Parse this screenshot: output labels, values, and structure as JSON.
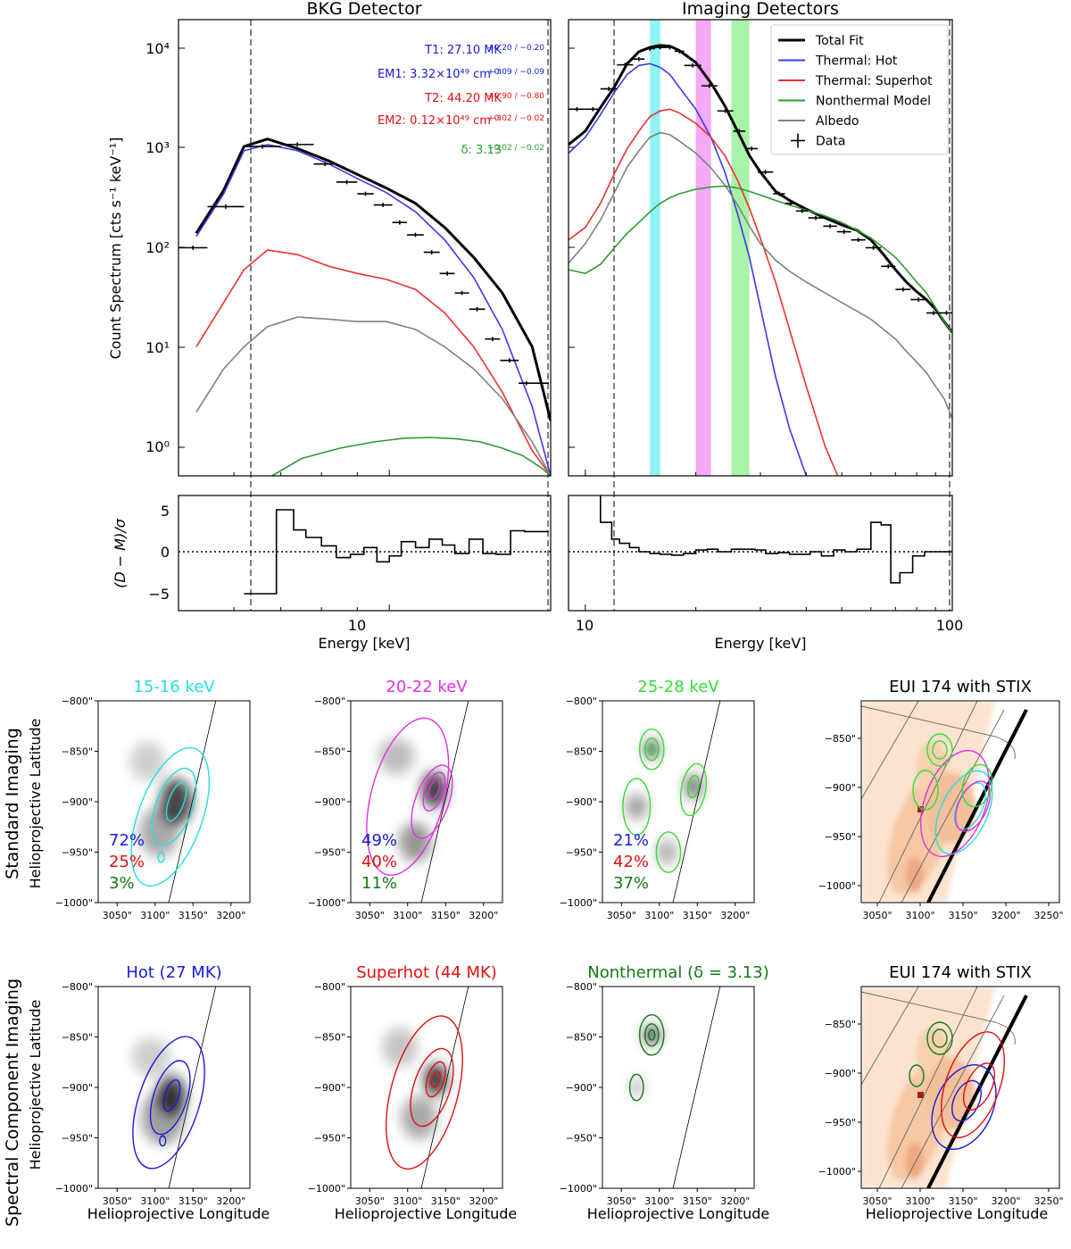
{
  "spectra": {
    "ylabel": "Count Spectrum [cts s⁻¹ keV⁻¹]",
    "res_ylabel": "(D − M)/σ",
    "xlabel": "Energy [keV]",
    "y_ticks": [
      "10⁰",
      "10¹",
      "10²",
      "10³",
      "10⁴"
    ],
    "res_ticks": [
      "5",
      "0",
      "−5"
    ],
    "panels": [
      {
        "title": "BKG Detector",
        "xrange": [
          5,
          17
        ],
        "x_ticks": [
          "10"
        ]
      },
      {
        "title": "Imaging Detectors",
        "xrange": [
          9,
          100
        ],
        "x_ticks": [
          "10",
          "100"
        ]
      }
    ],
    "fit_params": {
      "T1": "T1: 27.10 MK",
      "T1_err": "+0.20 / −0.20",
      "EM1": "EM1: 3.32×10⁴⁹ cm⁻³",
      "EM1_err": "+0.09 / −0.09",
      "T2": "T2: 44.20 MK",
      "T2_err": "+0.90 / −0.80",
      "EM2": "EM2: 0.12×10⁴⁹ cm⁻³",
      "EM2_err": "+0.02 / −0.02",
      "delta": "δ: 3.13",
      "delta_err": "+0.02 / −0.02"
    },
    "legend": [
      {
        "label": "Total Fit",
        "color": "#000000"
      },
      {
        "label": "Thermal: Hot",
        "color": "#3a3af0"
      },
      {
        "label": "Thermal: Superhot",
        "color": "#f03030"
      },
      {
        "label": "Nonthermal Model",
        "color": "#2f9a2f"
      },
      {
        "label": "Albedo",
        "color": "#808080"
      },
      {
        "label": "Data",
        "color": "#000000"
      }
    ]
  },
  "chart_data": [
    {
      "type": "line",
      "title": "BKG Detector",
      "xlabel": "Energy [keV]",
      "ylabel": "Count Spectrum",
      "xscale": "log",
      "yscale": "log",
      "xlim": [
        5,
        17
      ],
      "ylim": [
        0.5,
        20000
      ],
      "fit_range": [
        6.2,
        16.8
      ],
      "series": [
        {
          "name": "Total Fit",
          "color": "#000000",
          "x": [
            5.3,
            5.8,
            6.2,
            6.7,
            7.4,
            8.2,
            9.0,
            9.9,
            10.9,
            12.0,
            13.2,
            14.5,
            16.0,
            17.0
          ],
          "y": [
            140,
            380,
            1050,
            1250,
            1000,
            750,
            550,
            400,
            280,
            160,
            80,
            35,
            10,
            1.8
          ]
        },
        {
          "name": "Thermal: Hot",
          "color": "#3a3af0",
          "x": [
            5.3,
            5.8,
            6.2,
            6.7,
            7.4,
            8.2,
            9.0,
            9.9,
            10.9,
            12.0,
            13.2,
            14.5,
            16.0,
            17.0
          ],
          "y": [
            130,
            350,
            950,
            1100,
            950,
            700,
            500,
            360,
            230,
            120,
            50,
            15,
            2.5,
            0.5
          ]
        },
        {
          "name": "Thermal: Superhot",
          "color": "#f03030",
          "x": [
            5.3,
            5.8,
            6.2,
            6.7,
            7.4,
            8.2,
            9.0,
            9.9,
            10.9,
            12.0,
            13.2,
            14.5,
            16.0,
            17.0
          ],
          "y": [
            10,
            28,
            60,
            95,
            85,
            65,
            55,
            48,
            38,
            22,
            10,
            3.5,
            0.9,
            0.5
          ]
        },
        {
          "name": "Albedo",
          "color": "#808080",
          "x": [
            5.3,
            5.8,
            6.2,
            6.7,
            7.4,
            8.2,
            9.0,
            9.9,
            10.9,
            12.0,
            13.2,
            14.5,
            16.0,
            17.0
          ],
          "y": [
            2.2,
            6,
            10,
            16,
            20,
            19,
            18,
            18,
            15,
            10,
            6,
            3,
            1.1,
            0.5
          ]
        },
        {
          "name": "Nonthermal Model",
          "color": "#2f9a2f",
          "x": [
            6.8,
            7.5,
            8.5,
            9.5,
            10.5,
            11.5,
            12.5,
            13.5,
            14.5,
            15.5,
            16.5,
            17.0
          ],
          "y": [
            0.5,
            0.75,
            0.95,
            1.1,
            1.2,
            1.22,
            1.18,
            1.1,
            0.95,
            0.8,
            0.6,
            0.5
          ]
        },
        {
          "name": "Data",
          "color": "#000000",
          "step": true,
          "x0": [
            5.0,
            5.5,
            6.2,
            7.0,
            7.8,
            8.4,
            9.0,
            9.5,
            10.1,
            10.6,
            11.2,
            11.8,
            12.4,
            13.0,
            13.7,
            14.4,
            15.3,
            16.1
          ],
          "x1": [
            5.5,
            6.2,
            7.0,
            7.8,
            8.4,
            9.0,
            9.5,
            10.1,
            10.6,
            11.2,
            11.8,
            12.4,
            13.0,
            13.7,
            14.4,
            15.3,
            16.1,
            16.9
          ],
          "y": [
            100,
            260,
            1050,
            1100,
            700,
            460,
            350,
            270,
            180,
            135,
            90,
            55,
            35,
            24,
            12,
            7.3,
            4.3,
            4.3
          ]
        }
      ],
      "residuals": {
        "x0": [
          6.2,
          6.9,
          7.3,
          7.6,
          8.0,
          8.4,
          8.8,
          9.2,
          9.6,
          10.0,
          10.4,
          10.9,
          11.4,
          11.9,
          12.4,
          13.0,
          13.6,
          14.2,
          14.9,
          15.6,
          16.3
        ],
        "x1": [
          6.9,
          7.3,
          7.6,
          8.0,
          8.4,
          8.8,
          9.2,
          9.6,
          10.0,
          10.4,
          10.9,
          11.4,
          11.9,
          12.4,
          13.0,
          13.6,
          14.2,
          14.9,
          15.6,
          16.3,
          16.9
        ],
        "y": [
          -5,
          5,
          2.6,
          1.7,
          0.7,
          -0.7,
          -0.3,
          0.5,
          -1.2,
          -0.5,
          1.2,
          0.5,
          1.5,
          0.8,
          -0.2,
          1.5,
          -0.2,
          -0.3,
          2.5,
          2.4,
          2.4
        ]
      }
    },
    {
      "type": "line",
      "title": "Imaging Detectors",
      "xlabel": "Energy [keV]",
      "ylabel": "Count Spectrum",
      "xscale": "log",
      "yscale": "log",
      "xlim": [
        9,
        100
      ],
      "ylim": [
        0.5,
        20000
      ],
      "fit_range": [
        12,
        100
      ],
      "bands": [
        {
          "label": "15-16 keV",
          "range": [
            15,
            16
          ],
          "color": "#7af2f2"
        },
        {
          "label": "20-22 keV",
          "range": [
            20,
            22
          ],
          "color": "#f59af5"
        },
        {
          "label": "25-28 keV",
          "range": [
            25,
            28
          ],
          "color": "#9af09a"
        }
      ],
      "series": [
        {
          "name": "Total Fit",
          "color": "#000000",
          "x": [
            9,
            10,
            11,
            12,
            13,
            14,
            15,
            16,
            17,
            18,
            20,
            22,
            24,
            26,
            28,
            30,
            33,
            36,
            40,
            45,
            50,
            55,
            60,
            65,
            70,
            75,
            80,
            85,
            90,
            95,
            100
          ],
          "y": [
            1100,
            1500,
            2600,
            4200,
            7200,
            9500,
            10500,
            11000,
            10800,
            9800,
            7400,
            4600,
            2700,
            1500,
            850,
            580,
            370,
            300,
            245,
            200,
            170,
            150,
            120,
            85,
            60,
            45,
            36,
            30,
            24,
            18,
            14
          ]
        },
        {
          "name": "Thermal: Hot",
          "color": "#3a3af0",
          "x": [
            9,
            10,
            11,
            12,
            13,
            14,
            15,
            16,
            17,
            18,
            20,
            22,
            24,
            26,
            28,
            30,
            33,
            36,
            40
          ],
          "y": [
            900,
            1300,
            2200,
            3700,
            5600,
            6900,
            7200,
            6600,
            5600,
            4200,
            2500,
            1300,
            580,
            220,
            80,
            25,
            5,
            1.5,
            0.5
          ]
        },
        {
          "name": "Thermal: Superhot",
          "color": "#f03030",
          "x": [
            9,
            10,
            11,
            12,
            13,
            14,
            15,
            16,
            17,
            18,
            20,
            22,
            24,
            26,
            28,
            30,
            33,
            36,
            40,
            45,
            50
          ],
          "y": [
            120,
            160,
            280,
            560,
            1000,
            1500,
            2100,
            2400,
            2500,
            2300,
            1800,
            1300,
            850,
            480,
            250,
            125,
            45,
            15,
            4,
            1,
            0.4
          ]
        },
        {
          "name": "Albedo",
          "color": "#808080",
          "x": [
            9,
            10,
            11,
            12,
            13,
            14,
            15,
            16,
            17,
            18,
            20,
            22,
            24,
            26,
            28,
            30,
            33,
            36,
            40,
            45,
            50,
            55,
            60,
            65,
            70,
            75,
            80,
            85,
            90,
            95,
            100
          ],
          "y": [
            70,
            110,
            190,
            360,
            650,
            950,
            1300,
            1450,
            1380,
            1200,
            900,
            640,
            430,
            270,
            165,
            110,
            75,
            58,
            45,
            35,
            28,
            23,
            19,
            15,
            12,
            9,
            7,
            5.5,
            4,
            3,
            1.9
          ]
        },
        {
          "name": "Nonthermal Model",
          "color": "#2f9a2f",
          "x": [
            9,
            10,
            11,
            12,
            13,
            14,
            15,
            16,
            17,
            18,
            20,
            22,
            24,
            26,
            28,
            30,
            33,
            36,
            40,
            45,
            50,
            55,
            60,
            65,
            70,
            75,
            80,
            85,
            90,
            95,
            100
          ],
          "y": [
            60,
            55,
            68,
            100,
            140,
            180,
            230,
            280,
            320,
            350,
            390,
            410,
            420,
            400,
            370,
            340,
            300,
            270,
            240,
            210,
            180,
            150,
            125,
            100,
            80,
            60,
            45,
            35,
            25,
            18,
            14
          ]
        },
        {
          "name": "Data",
          "color": "#000000",
          "step": true,
          "x0": [
            9.0,
            10.0,
            11.0,
            12.2,
            13.5,
            14.5,
            15.5,
            16.5,
            17.5,
            18.6,
            20.7,
            22.9,
            25.3,
            27.3,
            29.5,
            32.5,
            35.0,
            37.5,
            40.5,
            44.5,
            48.5,
            53.0,
            58.0,
            64.0,
            70.0,
            77.0,
            85.0,
            93.0
          ],
          "x1": [
            10.0,
            11.0,
            12.2,
            13.5,
            14.5,
            15.5,
            16.5,
            17.5,
            18.6,
            20.7,
            22.9,
            25.3,
            27.3,
            29.5,
            32.5,
            35.0,
            37.5,
            40.5,
            44.5,
            48.5,
            53.0,
            58.0,
            64.0,
            70.0,
            77.0,
            85.0,
            93.0,
            100.0
          ],
          "y": [
            2500,
            2500,
            4000,
            7000,
            8000,
            10200,
            10500,
            10500,
            9600,
            6900,
            4300,
            2400,
            1500,
            1000,
            580,
            350,
            280,
            235,
            200,
            165,
            145,
            120,
            100,
            65,
            38,
            30,
            22,
            22
          ]
        }
      ],
      "residuals": {
        "x0": [
          9.0,
          11.0,
          11.8,
          12.4,
          13.2,
          14.0,
          15.0,
          16.0,
          17.2,
          18.5,
          20.0,
          21.5,
          23.0,
          25.0,
          27.0,
          29.0,
          31.0,
          33.5,
          36.0,
          38.5,
          41.0,
          44.0,
          47.5,
          51.0,
          55.0,
          60.0,
          64.0,
          68.0,
          72.0,
          78.0,
          84.0,
          92.0
        ],
        "x1": [
          11.0,
          11.8,
          12.4,
          13.2,
          14.0,
          15.0,
          16.0,
          17.2,
          18.5,
          20.0,
          21.5,
          23.0,
          25.0,
          27.0,
          29.0,
          31.0,
          33.5,
          36.0,
          38.5,
          41.0,
          44.0,
          47.5,
          51.0,
          55.0,
          60.0,
          64.0,
          68.0,
          72.0,
          78.0,
          84.0,
          92.0,
          100.0
        ],
        "y": [
          7,
          3.5,
          1.5,
          1.0,
          0.5,
          0.0,
          -0.2,
          -0.3,
          -0.4,
          -0.2,
          0.2,
          0.3,
          0.0,
          0.3,
          0.3,
          0.2,
          -0.2,
          -0.1,
          -0.3,
          -0.3,
          0.0,
          -0.5,
          0.2,
          0.0,
          0.3,
          3.5,
          3.2,
          -3.7,
          -2.5,
          -0.5,
          0.0,
          0.0
        ]
      }
    }
  ],
  "maps": {
    "row_labels": [
      "Standard Imaging",
      "Spectral Component Imaging"
    ],
    "lat_label": "Helioprojective Latitude",
    "lon_label": "Helioprojective Longitude",
    "y_ticks": [
      "−800\"",
      "−850\"",
      "−900\"",
      "−950\"",
      "−1000\""
    ],
    "x_ticks": [
      "3050\"",
      "3100\"",
      "3150\"",
      "3200\""
    ],
    "eui_y_ticks": [
      "−850\"",
      "−900\"",
      "−950\"",
      "−1000\""
    ],
    "eui_x_ticks": [
      "3050\"",
      "3100\"",
      "3150\"",
      "3200\"",
      "3250\""
    ],
    "row1": [
      {
        "title": "15-16 keV",
        "color": "#22e0e0",
        "pcts": [
          "72%",
          "25%",
          "3%"
        ]
      },
      {
        "title": "20-22 keV",
        "color": "#e030e0",
        "pcts": [
          "49%",
          "40%",
          "11%"
        ]
      },
      {
        "title": "25-28 keV",
        "color": "#33dd33",
        "pcts": [
          "21%",
          "42%",
          "37%"
        ]
      },
      {
        "title": "EUI 174 with STIX",
        "color": "#000000"
      }
    ],
    "row2": [
      {
        "title": "Hot (27 MK)",
        "color": "#1a1adc"
      },
      {
        "title": "Superhot (44 MK)",
        "color": "#e01010"
      },
      {
        "title": "Nonthermal (δ = 3.13)",
        "color": "#137a13"
      },
      {
        "title": "EUI 174 with STIX",
        "color": "#000000"
      }
    ],
    "pct_colors": [
      "#1a1adc",
      "#e01010",
      "#137a13"
    ]
  }
}
